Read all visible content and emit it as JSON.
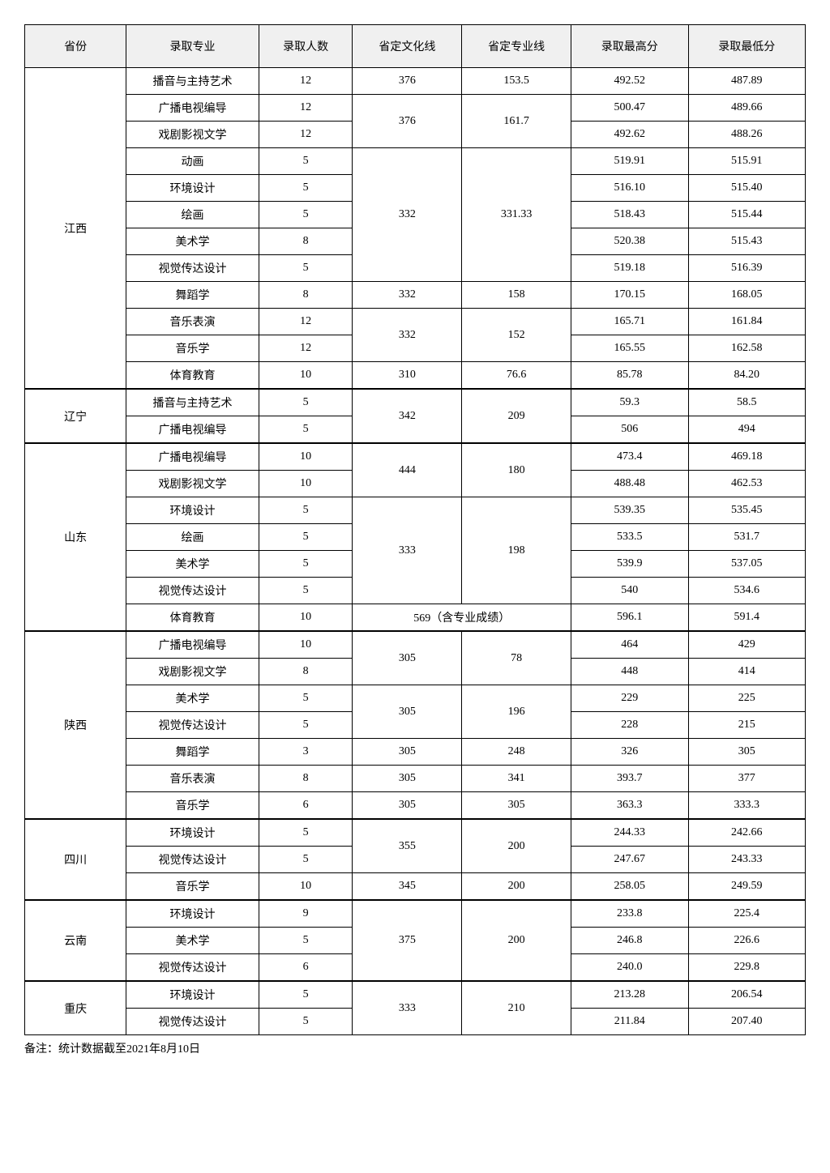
{
  "columns": [
    "省份",
    "录取专业",
    "录取人数",
    "省定文化线",
    "省定专业线",
    "录取最高分",
    "录取最低分"
  ],
  "column_widths": [
    "13%",
    "17%",
    "12%",
    "14%",
    "14%",
    "15%",
    "15%"
  ],
  "header_bg": "#f0f0f0",
  "border_color": "#000000",
  "background_color": "#ffffff",
  "font_family": "SimSun",
  "font_size_pt": 11,
  "provinces": [
    {
      "name": "江西",
      "rows": [
        {
          "major": "播音与主持艺术",
          "count": "12",
          "culture": "376",
          "pro": "153.5",
          "max": "492.52",
          "min": "487.89"
        },
        {
          "major": "广播电视编导",
          "count": "12",
          "culture": "376",
          "culture_span": 2,
          "pro": "161.7",
          "pro_span": 2,
          "max": "500.47",
          "min": "489.66"
        },
        {
          "major": "戏剧影视文学",
          "count": "12",
          "max": "492.62",
          "min": "488.26"
        },
        {
          "major": "动画",
          "count": "5",
          "culture": "332",
          "culture_span": 5,
          "pro": "331.33",
          "pro_span": 5,
          "max": "519.91",
          "min": "515.91"
        },
        {
          "major": "环境设计",
          "count": "5",
          "max": "516.10",
          "min": "515.40"
        },
        {
          "major": "绘画",
          "count": "5",
          "max": "518.43",
          "min": "515.44"
        },
        {
          "major": "美术学",
          "count": "8",
          "max": "520.38",
          "min": "515.43"
        },
        {
          "major": "视觉传达设计",
          "count": "5",
          "max": "519.18",
          "min": "516.39"
        },
        {
          "major": "舞蹈学",
          "count": "8",
          "culture": "332",
          "pro": "158",
          "max": "170.15",
          "min": "168.05"
        },
        {
          "major": "音乐表演",
          "count": "12",
          "culture": "332",
          "culture_span": 2,
          "pro": "152",
          "pro_span": 2,
          "max": "165.71",
          "min": "161.84"
        },
        {
          "major": "音乐学",
          "count": "12",
          "max": "165.55",
          "min": "162.58"
        },
        {
          "major": "体育教育",
          "count": "10",
          "culture": "310",
          "pro": "76.6",
          "max": "85.78",
          "min": "84.20"
        }
      ]
    },
    {
      "name": "辽宁",
      "rows": [
        {
          "major": "播音与主持艺术",
          "count": "5",
          "culture": "342",
          "culture_span": 2,
          "pro": "209",
          "pro_span": 2,
          "max": "59.3",
          "min": "58.5"
        },
        {
          "major": "广播电视编导",
          "count": "5",
          "max": "506",
          "min": "494"
        }
      ]
    },
    {
      "name": "山东",
      "rows": [
        {
          "major": "广播电视编导",
          "count": "10",
          "culture": "444",
          "culture_span": 2,
          "pro": "180",
          "pro_span": 2,
          "max": "473.4",
          "min": "469.18"
        },
        {
          "major": "戏剧影视文学",
          "count": "10",
          "max": "488.48",
          "min": "462.53"
        },
        {
          "major": "环境设计",
          "count": "5",
          "culture": "333",
          "culture_span": 4,
          "pro": "198",
          "pro_span": 4,
          "max": "539.35",
          "min": "535.45"
        },
        {
          "major": "绘画",
          "count": "5",
          "max": "533.5",
          "min": "531.7"
        },
        {
          "major": "美术学",
          "count": "5",
          "max": "539.9",
          "min": "537.05"
        },
        {
          "major": "视觉传达设计",
          "count": "5",
          "max": "540",
          "min": "534.6"
        },
        {
          "major": "体育教育",
          "count": "10",
          "culture": "569（含专业成绩）",
          "culture_colspan": 2,
          "max": "596.1",
          "min": "591.4"
        }
      ]
    },
    {
      "name": "陕西",
      "rows": [
        {
          "major": "广播电视编导",
          "count": "10",
          "culture": "305",
          "culture_span": 2,
          "pro": "78",
          "pro_span": 2,
          "max": "464",
          "min": "429"
        },
        {
          "major": "戏剧影视文学",
          "count": "8",
          "max": "448",
          "min": "414"
        },
        {
          "major": "美术学",
          "count": "5",
          "culture": "305",
          "culture_span": 2,
          "pro": "196",
          "pro_span": 2,
          "max": "229",
          "min": "225"
        },
        {
          "major": "视觉传达设计",
          "count": "5",
          "max": "228",
          "min": "215"
        },
        {
          "major": "舞蹈学",
          "count": "3",
          "culture": "305",
          "pro": "248",
          "max": "326",
          "min": "305"
        },
        {
          "major": "音乐表演",
          "count": "8",
          "culture": "305",
          "pro": "341",
          "max": "393.7",
          "min": "377"
        },
        {
          "major": "音乐学",
          "count": "6",
          "culture": "305",
          "pro": "305",
          "max": "363.3",
          "min": "333.3"
        }
      ]
    },
    {
      "name": "四川",
      "rows": [
        {
          "major": "环境设计",
          "count": "5",
          "culture": "355",
          "culture_span": 2,
          "pro": "200",
          "pro_span": 2,
          "max": "244.33",
          "min": "242.66"
        },
        {
          "major": "视觉传达设计",
          "count": "5",
          "max": "247.67",
          "min": "243.33"
        },
        {
          "major": "音乐学",
          "count": "10",
          "culture": "345",
          "pro": "200",
          "max": "258.05",
          "min": "249.59"
        }
      ]
    },
    {
      "name": "云南",
      "rows": [
        {
          "major": "环境设计",
          "count": "9",
          "culture": "375",
          "culture_span": 3,
          "pro": "200",
          "pro_span": 3,
          "max": "233.8",
          "min": "225.4"
        },
        {
          "major": "美术学",
          "count": "5",
          "max": "246.8",
          "min": "226.6"
        },
        {
          "major": "视觉传达设计",
          "count": "6",
          "max": "240.0",
          "min": "229.8"
        }
      ]
    },
    {
      "name": "重庆",
      "rows": [
        {
          "major": "环境设计",
          "count": "5",
          "culture": "333",
          "culture_span": 2,
          "pro": "210",
          "pro_span": 2,
          "max": "213.28",
          "min": "206.54"
        },
        {
          "major": "视觉传达设计",
          "count": "5",
          "max": "211.84",
          "min": "207.40"
        }
      ]
    }
  ],
  "footnote": "备注：统计数据截至2021年8月10日"
}
